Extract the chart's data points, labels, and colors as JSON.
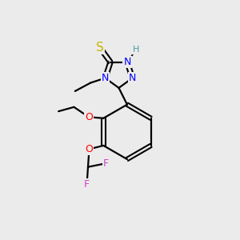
{
  "background_color": "#ebebeb",
  "bond_color": "#000000",
  "atom_colors": {
    "S": "#c8b400",
    "N": "#0000ff",
    "H": "#4a9a9a",
    "O": "#ff0000",
    "F": "#cc44cc",
    "C": "#000000"
  },
  "figsize": [
    3.0,
    3.0
  ],
  "dpi": 100
}
